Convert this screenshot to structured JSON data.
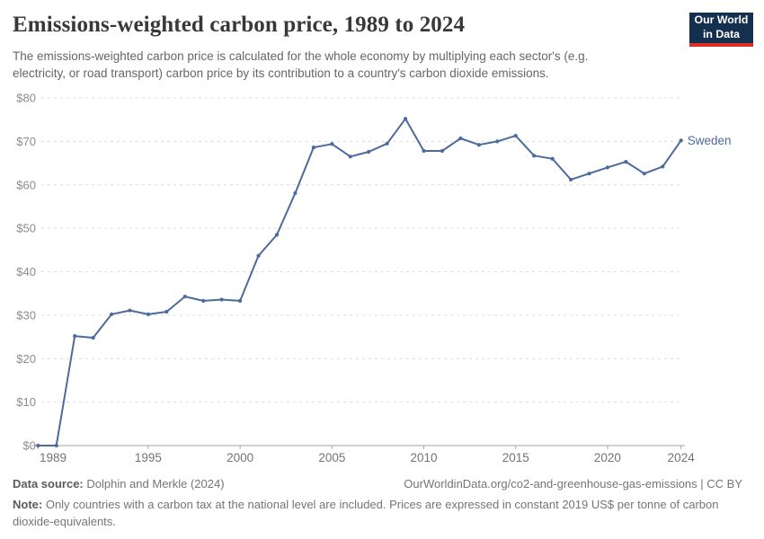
{
  "header": {
    "title": "Emissions-weighted carbon price, 1989 to 2024",
    "subtitle": "The emissions-weighted carbon price is calculated for the whole economy by multiplying each sector's (e.g. electricity, or road transport) carbon price by its contribution to a country's carbon dioxide emissions.",
    "logo": {
      "line1": "Our World",
      "line2": "in Data",
      "bg_color": "#15304e",
      "bar_color": "#dc2e27"
    }
  },
  "chart_data": {
    "type": "line",
    "title": "Emissions-weighted carbon price, 1989 to 2024",
    "xlabel": "",
    "ylabel": "US$ per tonne of carbon dioxide-equivalents",
    "x": [
      1989,
      1990,
      1991,
      1992,
      1993,
      1994,
      1995,
      1996,
      1997,
      1998,
      1999,
      2000,
      2001,
      2002,
      2003,
      2004,
      2005,
      2006,
      2007,
      2008,
      2009,
      2010,
      2011,
      2012,
      2013,
      2014,
      2015,
      2016,
      2017,
      2018,
      2019,
      2020,
      2021,
      2022,
      2023,
      2024
    ],
    "series": [
      {
        "name": "Sweden",
        "color": "#4c6a9c",
        "values": [
          0,
          0,
          25.2,
          24.8,
          30.2,
          31.1,
          30.2,
          30.8,
          34.3,
          33.3,
          33.6,
          33.3,
          43.7,
          48.5,
          58.1,
          68.6,
          69.4,
          66.5,
          67.6,
          69.5,
          75.2,
          67.8,
          67.8,
          70.7,
          69.2,
          70.0,
          71.3,
          66.7,
          66.0,
          61.2,
          62.6,
          64.0,
          65.3,
          62.6,
          64.2,
          70.2
        ]
      }
    ],
    "ylim": [
      0,
      80
    ],
    "y_ticks": [
      {
        "value": 0,
        "label": "$0"
      },
      {
        "value": 10,
        "label": "$10"
      },
      {
        "value": 20,
        "label": "$20"
      },
      {
        "value": 30,
        "label": "$30"
      },
      {
        "value": 40,
        "label": "$40"
      },
      {
        "value": 50,
        "label": "$50"
      },
      {
        "value": 60,
        "label": "$60"
      },
      {
        "value": 70,
        "label": "$70"
      },
      {
        "value": 80,
        "label": "$80"
      }
    ],
    "x_ticks": [
      {
        "value": 1989,
        "label": "1989"
      },
      {
        "value": 1995,
        "label": "1995"
      },
      {
        "value": 2000,
        "label": "2000"
      },
      {
        "value": 2005,
        "label": "2005"
      },
      {
        "value": 2010,
        "label": "2010"
      },
      {
        "value": 2015,
        "label": "2015"
      },
      {
        "value": 2020,
        "label": "2020"
      },
      {
        "value": 2024,
        "label": "2024"
      }
    ],
    "grid": "horizontal-dashed",
    "legend_position": "line-end-label",
    "colors": {
      "gridline": "#dcdcdc",
      "axis": "#a3a3a3",
      "y_tick_label": "#8c8c8c",
      "x_tick_label": "#737373"
    }
  },
  "footer": {
    "source_label": "Data source:",
    "source_value": " Dolphin and Merkle (2024)",
    "attribution": "OurWorldinData.org/co2-and-greenhouse-gas-emissions | CC BY",
    "note_label": "Note:",
    "note_value": " Only countries with a carbon tax at the national level are included. Prices are expressed in constant 2019 US$ per tonne of carbon dioxide-equivalents."
  }
}
